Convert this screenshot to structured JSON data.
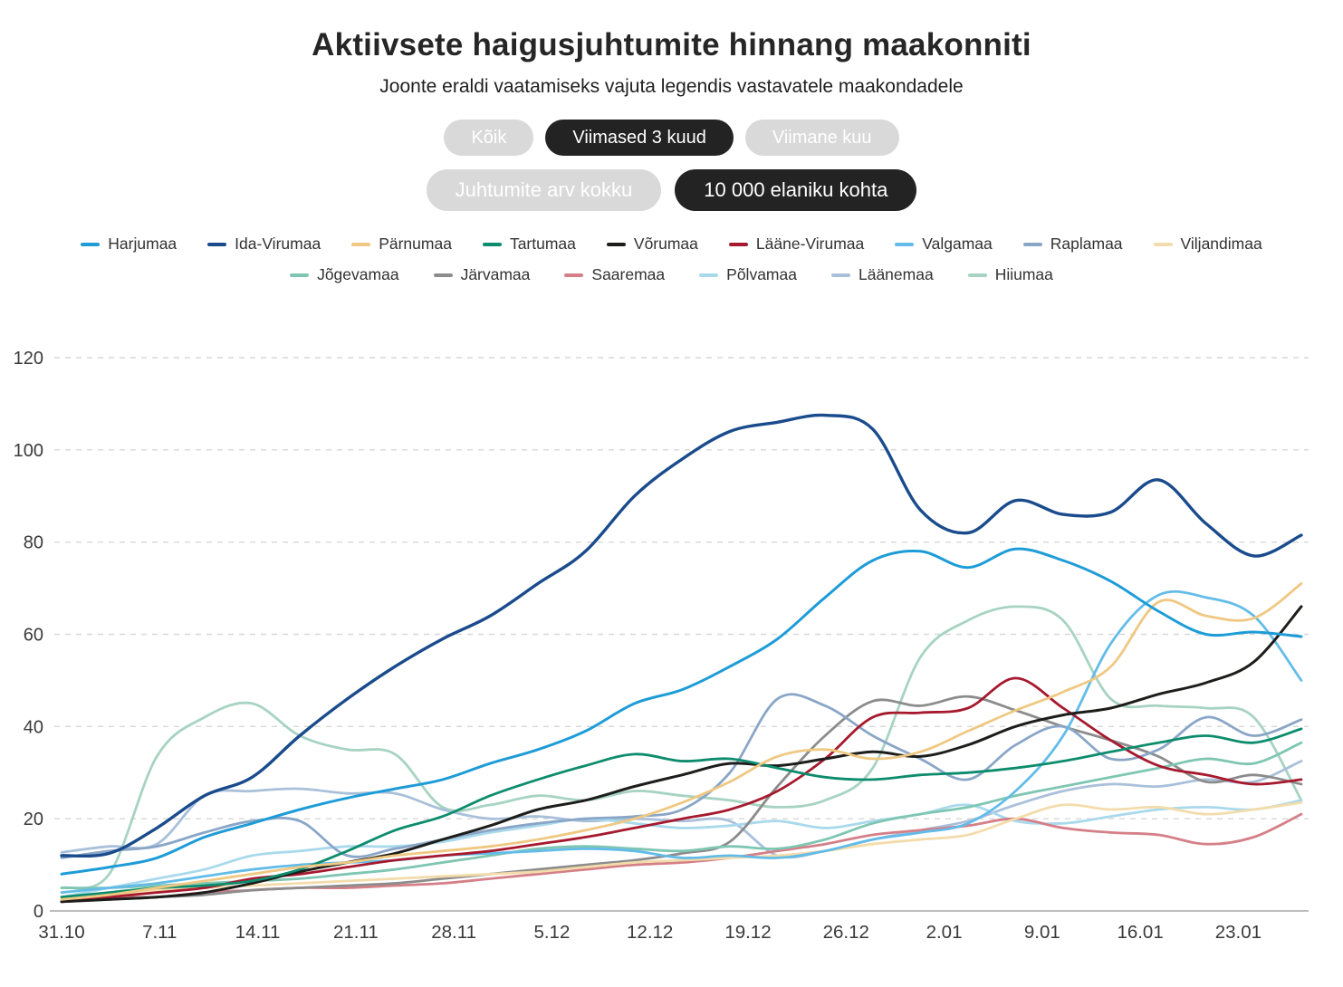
{
  "header": {
    "title": "Aktiivsete haigusjuhtumite hinnang maakonniti",
    "subtitle": "Joonte eraldi vaatamiseks vajuta legendis vastavatele maakondadele"
  },
  "filters": {
    "period_buttons": [
      {
        "label": "Kõik",
        "active": false
      },
      {
        "label": "Viimased 3 kuud",
        "active": true
      },
      {
        "label": "Viimane kuu",
        "active": false
      }
    ],
    "mode_buttons": [
      {
        "label": "Juhtumite arv kokku",
        "active": false
      },
      {
        "label": "10 000 elaniku kohta",
        "active": true
      }
    ],
    "colors": {
      "inactive_bg": "#d9d9d9",
      "active_bg": "#232323",
      "text": "#ffffff"
    }
  },
  "chart_data": {
    "type": "line",
    "title": "Aktiivsete haigusjuhtumite hinnang maakonniti",
    "xlabel": "",
    "ylabel": "",
    "ylim": [
      0,
      120
    ],
    "y_ticks": [
      0,
      20,
      40,
      60,
      80,
      100,
      120
    ],
    "grid": "dashed horizontal",
    "legend_position": "top, two centered rows (9 + 6 items), clickable",
    "x_range_days": [
      0,
      88.5
    ],
    "x_ticks": [
      {
        "day": 0,
        "label": "31.10"
      },
      {
        "day": 7,
        "label": "7.11"
      },
      {
        "day": 14,
        "label": "14.11"
      },
      {
        "day": 21,
        "label": "21.11"
      },
      {
        "day": 28,
        "label": "28.11"
      },
      {
        "day": 35,
        "label": "5.12"
      },
      {
        "day": 42,
        "label": "12.12"
      },
      {
        "day": 49,
        "label": "19.12"
      },
      {
        "day": 56,
        "label": "26.12"
      },
      {
        "day": 63,
        "label": "2.01"
      },
      {
        "day": 70,
        "label": "9.01"
      },
      {
        "day": 77,
        "label": "16.01"
      },
      {
        "day": 84,
        "label": "23.01"
      }
    ],
    "sample_days": [
      0,
      3.4,
      6.8,
      10.2,
      13.6,
      17,
      20.4,
      23.8,
      27.2,
      30.6,
      34,
      37.4,
      40.9,
      44.3,
      47.7,
      51.1,
      54.5,
      57.9,
      61.3,
      64.7,
      68.1,
      71.5,
      74.9,
      78.3,
      81.7,
      85.1,
      88.5
    ],
    "legend_rows": [
      9,
      6
    ],
    "series": [
      {
        "name": "Harjumaa",
        "color": "#1e9cd7",
        "width": 3.0,
        "values": [
          8,
          9.5,
          11.5,
          16,
          19,
          22,
          24.5,
          26.5,
          28.5,
          32,
          35,
          39,
          45,
          48,
          53,
          59,
          68,
          76,
          78,
          74.5,
          78.5,
          76,
          71.5,
          65,
          60,
          60.5,
          59.5
        ]
      },
      {
        "name": "Ida-Virumaa",
        "color": "#1a4b8c",
        "width": 3.4,
        "values": [
          12,
          12.5,
          18,
          25,
          29,
          38,
          46,
          53,
          59,
          64,
          71,
          78,
          90,
          98,
          104,
          106,
          107.5,
          104.5,
          87,
          82,
          89,
          86,
          86.5,
          93.5,
          84,
          77,
          81.5
        ]
      },
      {
        "name": "Pärnumaa",
        "color": "#efc882",
        "width": 2.8,
        "values": [
          2.5,
          3.5,
          5,
          6.5,
          8,
          9.5,
          10.5,
          12,
          13,
          14,
          15.5,
          17.5,
          20,
          23.5,
          28,
          33.5,
          35,
          33,
          34.5,
          39,
          43.5,
          47.5,
          53,
          67,
          64,
          63.5,
          71
        ]
      },
      {
        "name": "Tartumaa",
        "color": "#0d8c6d",
        "width": 2.8,
        "values": [
          3,
          4,
          5,
          5.5,
          6.5,
          9,
          13,
          17.5,
          20.5,
          25,
          28.5,
          31.5,
          34,
          32.5,
          33,
          31,
          29,
          28.5,
          29.5,
          30,
          31,
          32.5,
          34.5,
          36.5,
          38,
          36.5,
          39.5
        ]
      },
      {
        "name": "Võrumaa",
        "color": "#1d1d1b",
        "width": 3.0,
        "values": [
          2,
          2.5,
          3,
          4,
          6,
          8.5,
          10.5,
          12.5,
          15.5,
          18.5,
          22,
          24,
          27,
          29.5,
          32,
          31.5,
          33,
          34.5,
          33.5,
          36,
          40,
          42.5,
          44,
          47,
          49.5,
          54,
          66
        ]
      },
      {
        "name": "Lääne-Virumaa",
        "color": "#a6192e",
        "width": 2.8,
        "values": [
          2,
          3,
          4,
          5,
          7,
          8,
          9.5,
          11,
          12,
          13,
          14.5,
          16,
          18,
          20,
          22,
          26,
          33,
          42,
          43,
          44,
          50.5,
          44,
          37,
          31.5,
          29.5,
          27.5,
          28.5
        ]
      },
      {
        "name": "Valgamaa",
        "color": "#63bce8",
        "width": 2.8,
        "values": [
          4,
          5,
          6,
          7.5,
          9,
          10,
          10.5,
          11,
          12,
          12.5,
          13,
          13.5,
          13,
          11.5,
          12,
          11.5,
          13,
          15.5,
          17,
          19,
          26,
          38,
          58,
          68.5,
          68,
          64,
          50
        ]
      },
      {
        "name": "Raplamaa",
        "color": "#8aa6c7",
        "width": 2.8,
        "values": [
          11.5,
          13,
          14,
          17,
          19.5,
          19.5,
          12,
          13.5,
          15.5,
          17.5,
          19,
          20,
          20.5,
          22,
          30,
          46,
          44.5,
          38,
          33,
          28.5,
          36,
          40,
          33,
          35,
          42,
          38,
          41.5
        ]
      },
      {
        "name": "Viljandimaa",
        "color": "#f3dcab",
        "width": 2.8,
        "values": [
          3,
          3.5,
          4.5,
          5,
          5.5,
          6,
          6.5,
          7,
          7.5,
          8,
          8.5,
          9.5,
          10.5,
          11,
          11.5,
          12,
          13,
          14.5,
          15.5,
          16.5,
          20,
          23,
          22,
          22.5,
          21,
          22,
          23.5
        ]
      },
      {
        "name": "Jõgevamaa",
        "color": "#7fc6b2",
        "width": 2.8,
        "values": [
          5,
          5,
          5.5,
          6,
          6.5,
          7,
          8,
          9,
          10.5,
          12,
          13.5,
          14,
          13.5,
          13,
          14,
          13.5,
          15.5,
          19,
          21,
          22.5,
          25,
          27,
          29,
          31,
          33,
          32,
          36.5
        ]
      },
      {
        "name": "Järvamaa",
        "color": "#8c8c8c",
        "width": 2.8,
        "values": [
          2,
          2.5,
          3,
          3.5,
          4.5,
          5,
          5.5,
          6,
          7,
          8,
          9,
          10,
          11,
          12.5,
          15,
          27,
          38,
          45.5,
          44.5,
          46.5,
          43.5,
          40,
          37,
          33.5,
          28,
          29.5,
          27.5
        ]
      },
      {
        "name": "Saaremaa",
        "color": "#d57f88",
        "width": 2.8,
        "values": [
          2,
          3,
          3,
          4,
          4.5,
          5,
          5,
          5.5,
          6,
          7,
          8,
          9,
          10,
          10.5,
          11.5,
          13,
          14.5,
          16.5,
          17.5,
          18.5,
          20,
          18,
          17,
          16.5,
          14.5,
          16,
          21
        ]
      },
      {
        "name": "Põlvamaa",
        "color": "#a9d9ec",
        "width": 2.8,
        "values": [
          3,
          5,
          7,
          9,
          12,
          13,
          14,
          14,
          15,
          17,
          18.5,
          20,
          19,
          18,
          18.5,
          19.5,
          18,
          19.5,
          21,
          23,
          19.5,
          19,
          20.5,
          22,
          22.5,
          22,
          24
        ]
      },
      {
        "name": "Läänemaa",
        "color": "#a9c0da",
        "width": 2.8,
        "values": [
          12.7,
          14,
          14.5,
          25,
          26,
          26.5,
          25.5,
          25.5,
          22,
          20,
          20.5,
          19.5,
          20,
          19.5,
          19.5,
          12,
          13,
          15.5,
          17.5,
          19.5,
          23,
          26,
          27.5,
          27,
          28.5,
          28,
          32.5
        ]
      },
      {
        "name": "Hiiumaa",
        "color": "#a7d3c2",
        "width": 2.8,
        "values": [
          5,
          8,
          33.5,
          42,
          45,
          38,
          35,
          34,
          22.5,
          23,
          25,
          24,
          26,
          25,
          24,
          22.5,
          24,
          31,
          55,
          63,
          66,
          63,
          46,
          44.5,
          44,
          42,
          24
        ]
      }
    ],
    "axis_colors": {
      "grid": "#d8d8d8",
      "baseline": "#a9a9a9",
      "tick_text": "#3a3a3a"
    }
  }
}
